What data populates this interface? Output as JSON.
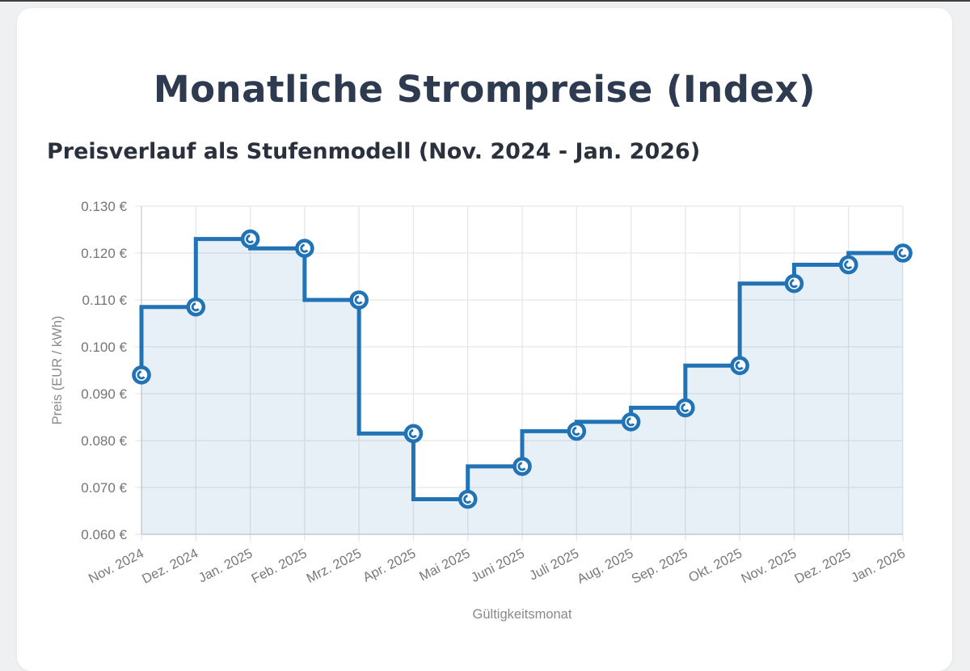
{
  "header": {
    "title": "Monatliche Strompreise (Index)",
    "subtitle": "Preisverlauf als Stufenmodell (Nov. 2024 - Jan. 2026)"
  },
  "chart_data": {
    "type": "line",
    "stepped": "before",
    "title": "Monatliche Strompreise (Index)",
    "subtitle": "Preisverlauf als Stufenmodell (Nov. 2024 - Jan. 2026)",
    "xlabel": "Gültigkeitsmonat",
    "ylabel": "Preis (EUR / kWh)",
    "categories": [
      "Nov. 2024",
      "Dez. 2024",
      "Jan. 2025",
      "Feb. 2025",
      "Mrz. 2025",
      "Apr. 2025",
      "Mai 2025",
      "Juni 2025",
      "Juli 2025",
      "Aug. 2025",
      "Sep. 2025",
      "Okt. 2025",
      "Nov. 2025",
      "Dez. 2025",
      "Jan. 2026"
    ],
    "values": [
      0.094,
      0.1085,
      0.123,
      0.121,
      0.11,
      0.0815,
      0.0675,
      0.0745,
      0.082,
      0.084,
      0.087,
      0.096,
      0.1135,
      0.1175,
      0.12
    ],
    "ylim": [
      0.06,
      0.13
    ],
    "ytick_step": 0.01,
    "ytick_suffix": " €",
    "grid": true,
    "legend": false,
    "colors": {
      "line": "#2173b6",
      "fill": "rgba(33,115,182,0.11)",
      "marker_fill": "#ffffff",
      "grid": "#e4e6ea",
      "axis": "#cdd1d6",
      "title": "#2e3a50",
      "subtitle": "#2a313c",
      "tick_text": "#757575"
    }
  }
}
